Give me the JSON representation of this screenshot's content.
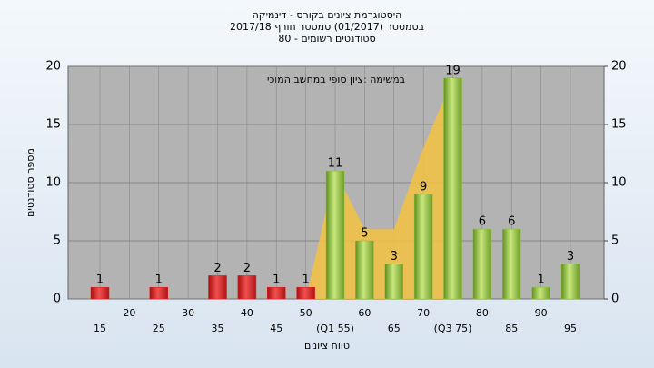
{
  "chart_data": {
    "type": "bar",
    "title": "היסטוגרמת ציונים בקורס - דינמיקה",
    "subtitle": "בסמסטר  (01/2017)  סמסטר חורף 2017/18",
    "subtitle2": "80 - סטודנטים רשומים",
    "annotation": "במשימה :ציון סופי במחשב המוכי",
    "x_label": "טווח ציונים",
    "y_label": "מספר סטודנטים",
    "categories": [
      "15",
      "20",
      "25",
      "30",
      "35",
      "40",
      "45",
      "50",
      "(Q1 55)",
      "60",
      "65",
      "70",
      "(Q3 75)",
      "80",
      "85",
      "90",
      "95"
    ],
    "values": [
      1,
      0,
      1,
      0,
      2,
      2,
      1,
      1,
      11,
      5,
      3,
      9,
      19,
      6,
      6,
      1,
      3
    ],
    "colors": [
      "#e02020",
      "#e02020",
      "#e02020",
      "#e02020",
      "#e02020",
      "#e02020",
      "#e02020",
      "#e02020",
      "#8cbf3c",
      "#8cbf3c",
      "#8cbf3c",
      "#8cbf3c",
      "#8cbf3c",
      "#8cbf3c",
      "#8cbf3c",
      "#8cbf3c",
      "#8cbf3c"
    ],
    "area": {
      "color": "#f5c242",
      "values": [
        null,
        null,
        null,
        null,
        null,
        null,
        null,
        0,
        11,
        6,
        6,
        13,
        19,
        null,
        null,
        null,
        null
      ]
    },
    "ylim": [
      0,
      20
    ],
    "yticks": [
      0,
      5,
      10,
      15,
      20
    ],
    "y2lim": [
      0,
      20
    ],
    "y2ticks": [
      0,
      5,
      10,
      15,
      20
    ],
    "grid": true
  }
}
